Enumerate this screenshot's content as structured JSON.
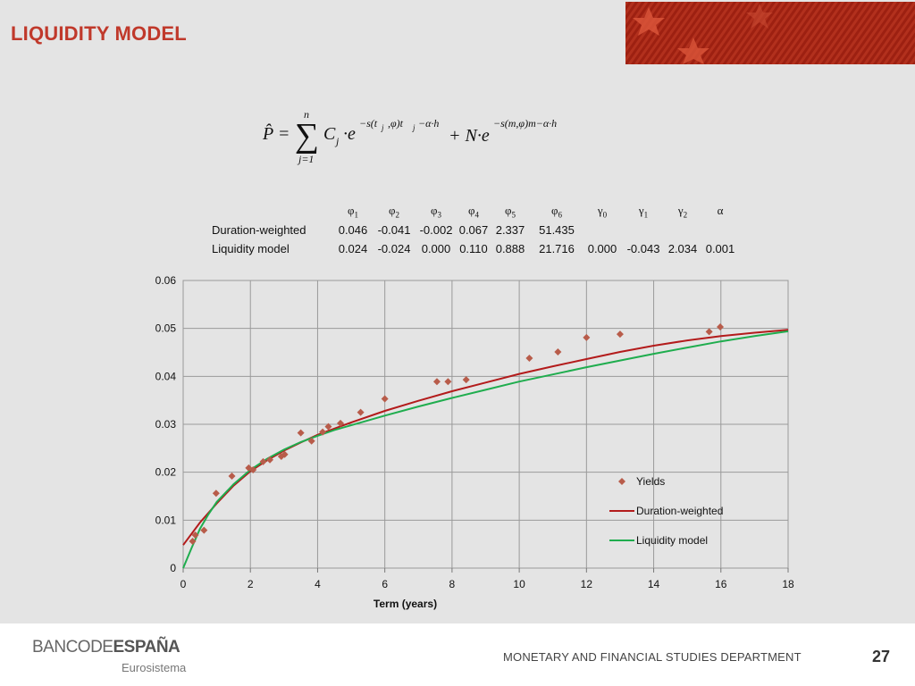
{
  "header": {
    "title": "LIQUIDITY MODEL"
  },
  "colors": {
    "title": "#c0392b",
    "yields": "#b85c4a",
    "duration_weighted": "#b31b1b",
    "liquidity_model": "#1fad4e",
    "banner": "#b02a1a"
  },
  "formula": {
    "lhs": "P̂ =",
    "sum_top": "n",
    "sum_bottom": "j=1",
    "term1_base": "C",
    "term1_sub": "j",
    "term1_exp": "−s(t",
    "term1_exp_sub": "j",
    "term1_exp_rest": ",φ)t",
    "term1_exp_sub2": "j",
    "term1_exp_tail": "−α·h",
    "plus_term": "+ N·e",
    "term2_exp": "−s(m,φ)m−α·h",
    "e": "·e"
  },
  "params": {
    "headers": [
      "φ1",
      "φ2",
      "φ3",
      "φ4",
      "φ5",
      "φ6",
      "γ0",
      "γ1",
      "γ2",
      "α"
    ],
    "header_symbols": [
      "φ",
      "φ",
      "φ",
      "φ",
      "φ",
      "φ",
      "γ",
      "γ",
      "γ",
      "α"
    ],
    "header_subs": [
      "1",
      "2",
      "3",
      "4",
      "5",
      "6",
      "0",
      "1",
      "2",
      ""
    ],
    "rows": [
      {
        "label": "Duration-weighted",
        "values": [
          "0.046",
          "-0.041",
          "-0.002",
          "0.067",
          "2.337",
          "51.435",
          "",
          "",
          "",
          ""
        ]
      },
      {
        "label": "Liquidity model",
        "values": [
          "0.024",
          "-0.024",
          "0.000",
          "0.110",
          "0.888",
          "21.716",
          "0.000",
          "-0.043",
          "2.034",
          "0.001"
        ]
      }
    ]
  },
  "chart_data": {
    "type": "scatter",
    "xlabel": "Term (years)",
    "ylabel": "",
    "xlim": [
      0,
      18
    ],
    "ylim": [
      0,
      0.06
    ],
    "xticks": [
      "0",
      "2",
      "4",
      "6",
      "8",
      "10",
      "12",
      "14",
      "16",
      "18"
    ],
    "yticks": [
      "0",
      "0.01",
      "0.02",
      "0.03",
      "0.04",
      "0.05",
      "0.06"
    ],
    "grid": true,
    "legend_position": "bottom-right",
    "series": [
      {
        "name": "Yields",
        "kind": "markers",
        "x": [
          0.28,
          0.36,
          0.62,
          0.98,
          1.45,
          1.95,
          2.08,
          2.38,
          2.58,
          2.92,
          3.02,
          3.5,
          3.82,
          4.15,
          4.32,
          4.68,
          5.28,
          6.0,
          7.55,
          7.88,
          8.42,
          10.3,
          11.15,
          12.0,
          13.0,
          15.65,
          15.98
        ],
        "y": [
          0.0056,
          0.0069,
          0.0079,
          0.0156,
          0.0192,
          0.0209,
          0.0205,
          0.0222,
          0.0226,
          0.0233,
          0.0237,
          0.0282,
          0.0265,
          0.0284,
          0.0295,
          0.0302,
          0.0325,
          0.0353,
          0.0389,
          0.0389,
          0.0393,
          0.0438,
          0.0451,
          0.0481,
          0.0488,
          0.0493,
          0.0503
        ]
      },
      {
        "name": "Duration-weighted",
        "kind": "line",
        "x": [
          0,
          0.5,
          1,
          1.5,
          2,
          2.5,
          3,
          3.5,
          4,
          4.5,
          5,
          6,
          7,
          8,
          9,
          10,
          11,
          12,
          13,
          14,
          15,
          16,
          17,
          18
        ],
        "y": [
          0.0048,
          0.0095,
          0.0135,
          0.0172,
          0.0202,
          0.0225,
          0.0245,
          0.0262,
          0.0278,
          0.0291,
          0.0304,
          0.0328,
          0.0349,
          0.0369,
          0.0387,
          0.0405,
          0.0421,
          0.0436,
          0.0451,
          0.0464,
          0.0475,
          0.0484,
          0.0491,
          0.0497
        ]
      },
      {
        "name": "Liquidity model",
        "kind": "line",
        "x": [
          0,
          0.25,
          0.5,
          0.75,
          1,
          1.5,
          2,
          2.5,
          3,
          3.5,
          4,
          4.5,
          5,
          6,
          7,
          8,
          9,
          10,
          11,
          12,
          13,
          14,
          15,
          16,
          17,
          18
        ],
        "y": [
          0.0,
          0.0042,
          0.0082,
          0.0112,
          0.0138,
          0.0175,
          0.0205,
          0.0228,
          0.0247,
          0.0263,
          0.0276,
          0.0288,
          0.0298,
          0.0318,
          0.0337,
          0.0355,
          0.0372,
          0.0389,
          0.0404,
          0.0419,
          0.0433,
          0.0447,
          0.046,
          0.0473,
          0.0484,
          0.0494
        ]
      }
    ]
  },
  "footer": {
    "logo_part1": "BANCO",
    "logo_part2": "DE",
    "logo_part3": "ESPAÑA",
    "logo_sub": "Eurosistema",
    "department": "MONETARY AND FINANCIAL STUDIES DEPARTMENT",
    "page_number": "27"
  }
}
